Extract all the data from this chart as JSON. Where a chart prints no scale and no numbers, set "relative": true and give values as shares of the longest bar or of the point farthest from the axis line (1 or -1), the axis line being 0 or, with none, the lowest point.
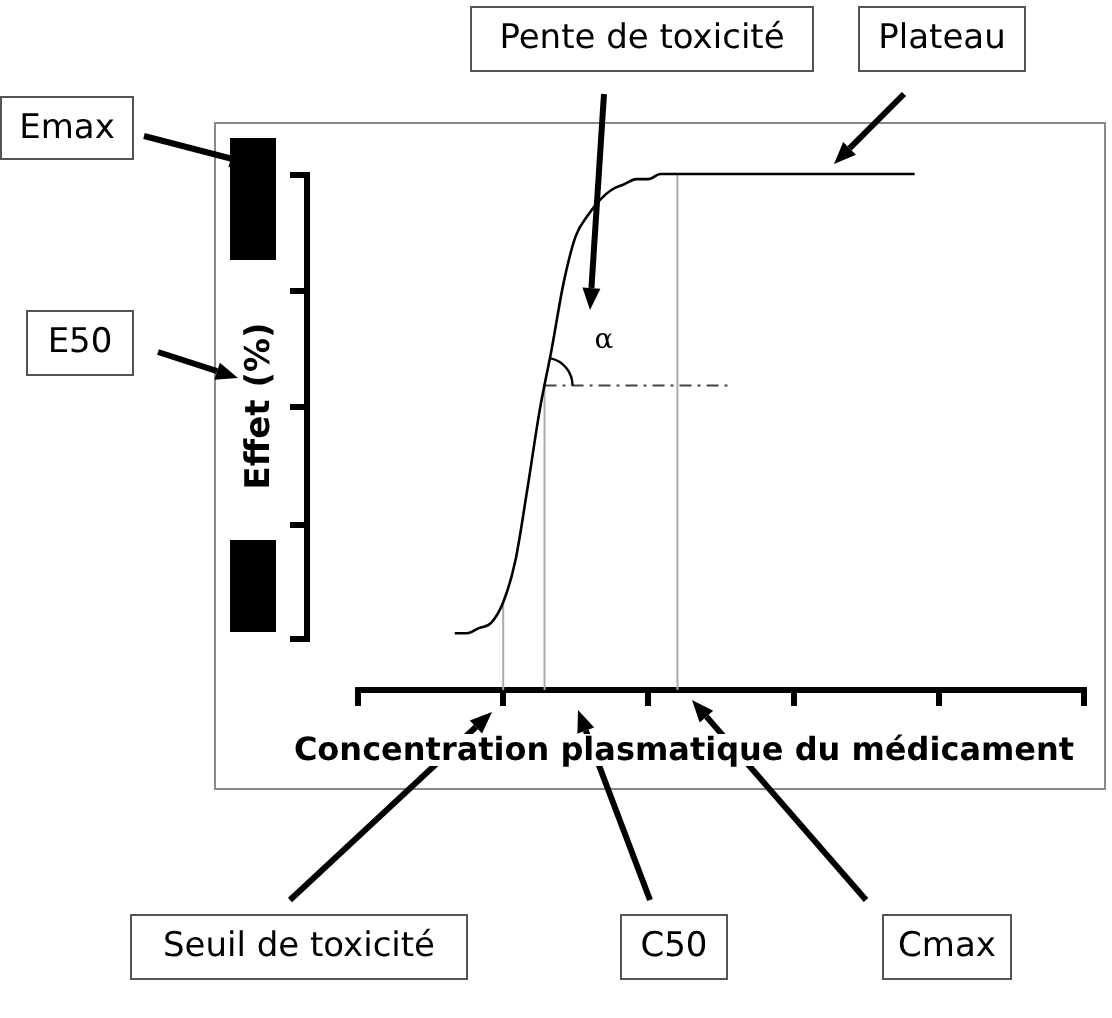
{
  "chart_data": {
    "type": "line",
    "relative": true,
    "xlabel": "Concentration plasmatique du médicament",
    "ylabel": "Effet (%)",
    "categories": [
      null,
      null,
      null,
      null,
      null,
      null,
      null,
      null,
      null,
      null,
      null,
      null,
      null,
      null,
      null,
      null,
      null,
      null,
      null,
      null,
      null,
      null,
      null,
      null,
      null,
      null,
      null,
      null,
      null,
      null,
      null,
      null,
      null,
      null,
      null,
      null,
      null,
      null,
      null,
      null,
      null,
      null,
      null,
      null,
      null,
      null,
      null,
      null,
      null,
      null,
      null,
      null,
      null,
      null,
      null,
      null,
      null,
      null,
      null,
      null,
      null
    ],
    "values": [
      null,
      null,
      null,
      null,
      null,
      null,
      null,
      null,
      0.11,
      0.11,
      0.12,
      0.13,
      0.17,
      0.25,
      0.39,
      0.54,
      0.66,
      0.79,
      0.88,
      0.92,
      0.95,
      0.97,
      0.98,
      0.99,
      0.99,
      1,
      1,
      1,
      1,
      1,
      1,
      1,
      1,
      1,
      1,
      1,
      1,
      1,
      1,
      1,
      1,
      1,
      1,
      1,
      1,
      1,
      1,
      null,
      null,
      null,
      null,
      null,
      null,
      null,
      null,
      null,
      null,
      null,
      null,
      null,
      null
    ],
    "color": "#000000",
    "marker": "none",
    "ref_lines": [
      {
        "axis": "y",
        "value": 0.59,
        "color": "#444444",
        "line_style": "dashed"
      }
    ],
    "annotations": [
      "Emax",
      "E50",
      "Pente de toxicité",
      "Plateau",
      "Seuil de toxicité",
      "C50",
      "Cmax",
      "α"
    ]
  }
}
